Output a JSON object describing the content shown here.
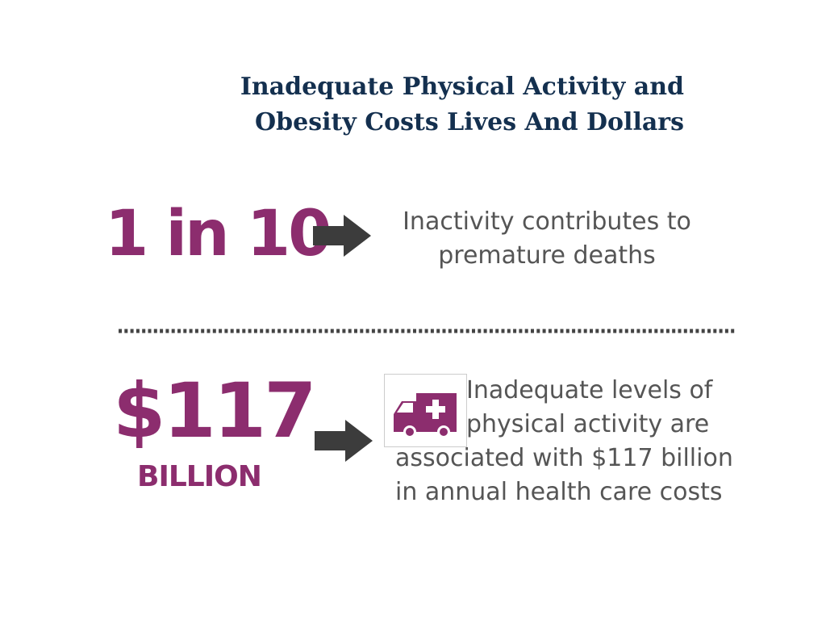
{
  "title": [
    "Inadequate Physical Activity and",
    "Obesity Costs Lives And Dollars"
  ],
  "stats": [
    {
      "figure": "1 in 10",
      "description": [
        "Inactivity contributes to",
        "premature deaths"
      ]
    },
    {
      "figure": "$117",
      "unit": "BILLION",
      "description": [
        "Inadequate levels of",
        "physical activity are",
        "associated with $117 billion",
        "in annual health care costs"
      ]
    }
  ]
}
